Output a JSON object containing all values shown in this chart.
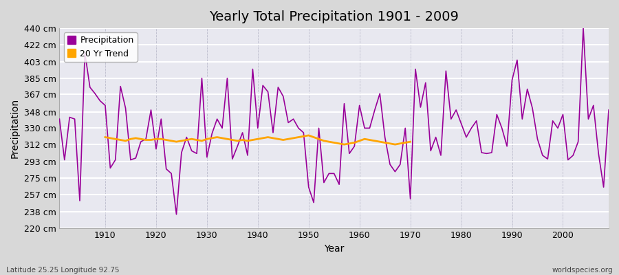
{
  "title": "Yearly Total Precipitation 1901 - 2009",
  "xlabel": "Year",
  "ylabel": "Precipitation",
  "footnote_left": "Latitude 25.25 Longitude 92.75",
  "footnote_right": "worldspecies.org",
  "line_color": "#990099",
  "trend_color": "#FFA500",
  "bg_color": "#d8d8d8",
  "plot_bg_color": "#e8e8f0",
  "years": [
    1901,
    1902,
    1903,
    1904,
    1905,
    1906,
    1907,
    1908,
    1909,
    1910,
    1911,
    1912,
    1913,
    1914,
    1915,
    1916,
    1917,
    1918,
    1919,
    1920,
    1921,
    1922,
    1923,
    1924,
    1925,
    1926,
    1927,
    1928,
    1929,
    1930,
    1931,
    1932,
    1933,
    1934,
    1935,
    1936,
    1937,
    1938,
    1939,
    1940,
    1941,
    1942,
    1943,
    1944,
    1945,
    1946,
    1947,
    1948,
    1949,
    1950,
    1951,
    1952,
    1953,
    1954,
    1955,
    1956,
    1957,
    1958,
    1959,
    1960,
    1961,
    1962,
    1963,
    1964,
    1965,
    1966,
    1967,
    1968,
    1969,
    1970,
    1971,
    1972,
    1973,
    1974,
    1975,
    1976,
    1977,
    1978,
    1979,
    1980,
    1981,
    1982,
    1983,
    1984,
    1985,
    1986,
    1987,
    1988,
    1989,
    1990,
    1991,
    1992,
    1993,
    1994,
    1995,
    1996,
    1997,
    1998,
    1999,
    2000,
    2001,
    2002,
    2003,
    2004,
    2005,
    2006,
    2007,
    2008,
    2009
  ],
  "precip": [
    340,
    295,
    342,
    340,
    250,
    413,
    375,
    368,
    360,
    355,
    286,
    295,
    376,
    352,
    295,
    297,
    315,
    318,
    350,
    307,
    340,
    285,
    280,
    235,
    303,
    320,
    305,
    302,
    385,
    298,
    324,
    340,
    330,
    385,
    296,
    310,
    325,
    300,
    395,
    330,
    377,
    370,
    325,
    375,
    365,
    336,
    340,
    330,
    325,
    265,
    248,
    330,
    270,
    280,
    280,
    268,
    357,
    302,
    310,
    355,
    330,
    330,
    350,
    368,
    320,
    290,
    282,
    290,
    330,
    252,
    395,
    353,
    380,
    305,
    320,
    300,
    393,
    340,
    350,
    335,
    320,
    330,
    338,
    303,
    302,
    303,
    345,
    330,
    310,
    383,
    405,
    340,
    373,
    352,
    318,
    300,
    296,
    338,
    330,
    345,
    295,
    300,
    315,
    440,
    340,
    355,
    302,
    265,
    350
  ],
  "trend_years": [
    1910,
    1911,
    1912,
    1913,
    1914,
    1915,
    1916,
    1917,
    1918,
    1919,
    1920,
    1921,
    1922,
    1923,
    1924,
    1925,
    1926,
    1927,
    1928,
    1929,
    1930,
    1931,
    1932,
    1933,
    1934,
    1935,
    1936,
    1937,
    1938,
    1939,
    1940,
    1941,
    1942,
    1943,
    1944,
    1945,
    1946,
    1947,
    1948,
    1949,
    1950,
    1951,
    1952,
    1953,
    1954,
    1955,
    1956,
    1957,
    1958,
    1959,
    1960,
    1961,
    1962,
    1963,
    1964,
    1965,
    1966,
    1967,
    1968,
    1969,
    1970
  ],
  "trend": [
    320,
    319,
    318,
    317,
    316,
    318,
    319,
    318,
    317,
    317,
    318,
    318,
    317,
    316,
    315,
    316,
    317,
    318,
    317,
    316,
    318,
    319,
    320,
    319,
    318,
    317,
    316,
    317,
    316,
    317,
    318,
    319,
    320,
    319,
    318,
    317,
    318,
    319,
    320,
    321,
    322,
    320,
    318,
    316,
    315,
    314,
    313,
    312,
    313,
    314,
    316,
    318,
    317,
    316,
    315,
    314,
    313,
    312,
    313,
    314,
    315
  ],
  "ylim": [
    220,
    440
  ],
  "xlim": [
    1901,
    2009
  ],
  "yticks": [
    220,
    238,
    257,
    275,
    293,
    312,
    330,
    348,
    367,
    385,
    403,
    422,
    440
  ],
  "xticks": [
    1910,
    1920,
    1930,
    1940,
    1950,
    1960,
    1970,
    1980,
    1990,
    2000
  ],
  "title_fontsize": 14,
  "label_fontsize": 10,
  "tick_fontsize": 9
}
